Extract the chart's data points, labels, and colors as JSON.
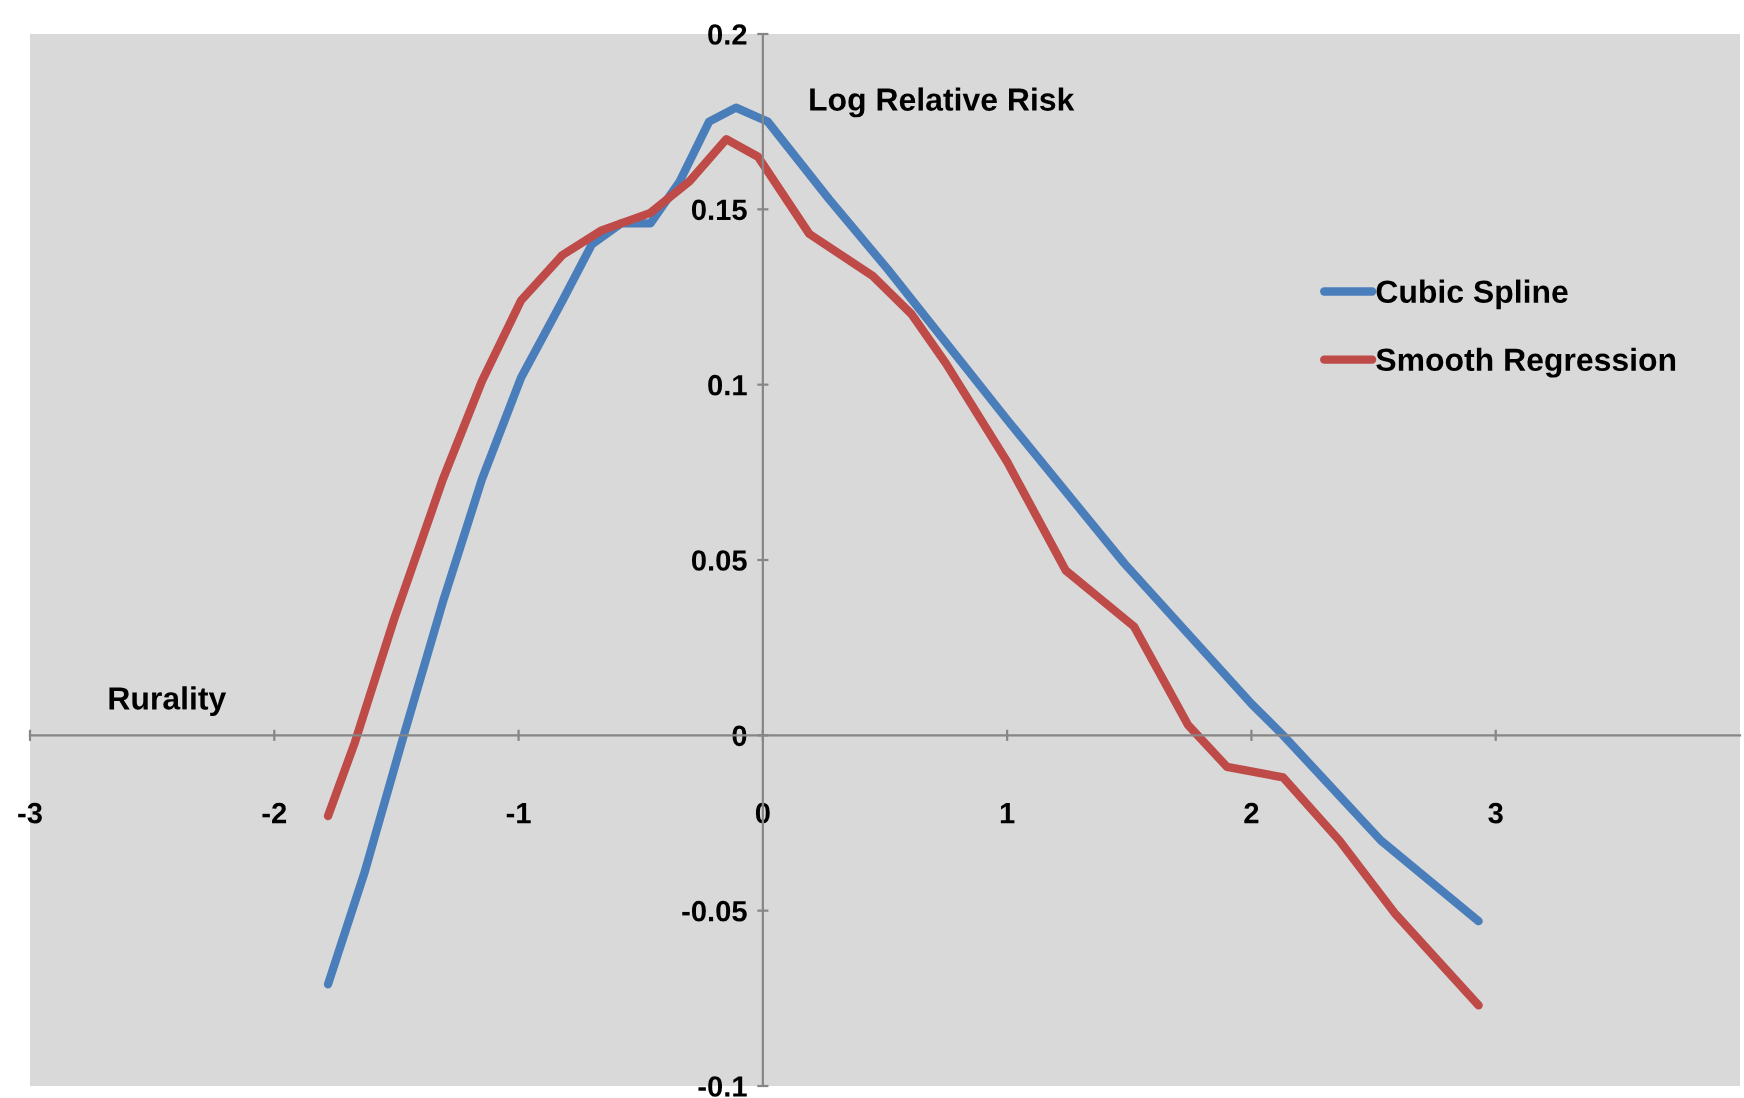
{
  "chart_data": {
    "type": "line",
    "xlabel": "Rurality",
    "ylabel": "Log Relative Risk",
    "xlim": [
      -3,
      4
    ],
    "xticks": [
      -3,
      -2,
      -1,
      0,
      1,
      2,
      3
    ],
    "ylim": [
      -0.1,
      0.2
    ],
    "yticks": [
      -0.1,
      -0.05,
      0,
      0.05,
      0.1,
      0.15,
      0.2
    ],
    "grid": false,
    "legend": "right",
    "marker": "none",
    "line_style": "solid",
    "series": [
      {
        "name": "Cubic Spline",
        "color": "#4a7ebb",
        "x": [
          -1.78,
          -1.63,
          -1.47,
          -1.31,
          -1.15,
          -0.99,
          -0.82,
          -0.7,
          -0.58,
          -0.46,
          -0.34,
          -0.22,
          -0.11,
          0.02,
          0.27,
          0.51,
          1.0,
          1.48,
          2.0,
          2.13,
          2.53,
          2.93
        ],
        "values": [
          -0.071,
          -0.039,
          0.0,
          0.038,
          0.073,
          0.102,
          0.124,
          0.14,
          0.146,
          0.146,
          0.158,
          0.175,
          0.179,
          0.175,
          0.153,
          0.133,
          0.09,
          0.049,
          0.009,
          0.0,
          -0.03,
          -0.053
        ]
      },
      {
        "name": "Smooth Regression",
        "color": "#be4b48",
        "x": [
          -1.78,
          -1.67,
          -1.51,
          -1.31,
          -1.15,
          -0.99,
          -0.82,
          -0.66,
          -0.46,
          -0.3,
          -0.15,
          -0.02,
          0.19,
          0.45,
          0.61,
          0.75,
          1.0,
          1.24,
          1.52,
          1.74,
          1.9,
          2.13,
          2.36,
          2.59,
          2.93
        ],
        "values": [
          -0.023,
          -0.002,
          0.033,
          0.073,
          0.101,
          0.124,
          0.137,
          0.144,
          0.149,
          0.158,
          0.17,
          0.165,
          0.143,
          0.131,
          0.12,
          0.106,
          0.078,
          0.047,
          0.031,
          0.003,
          -0.009,
          -0.012,
          -0.03,
          -0.051,
          -0.077
        ]
      }
    ]
  }
}
